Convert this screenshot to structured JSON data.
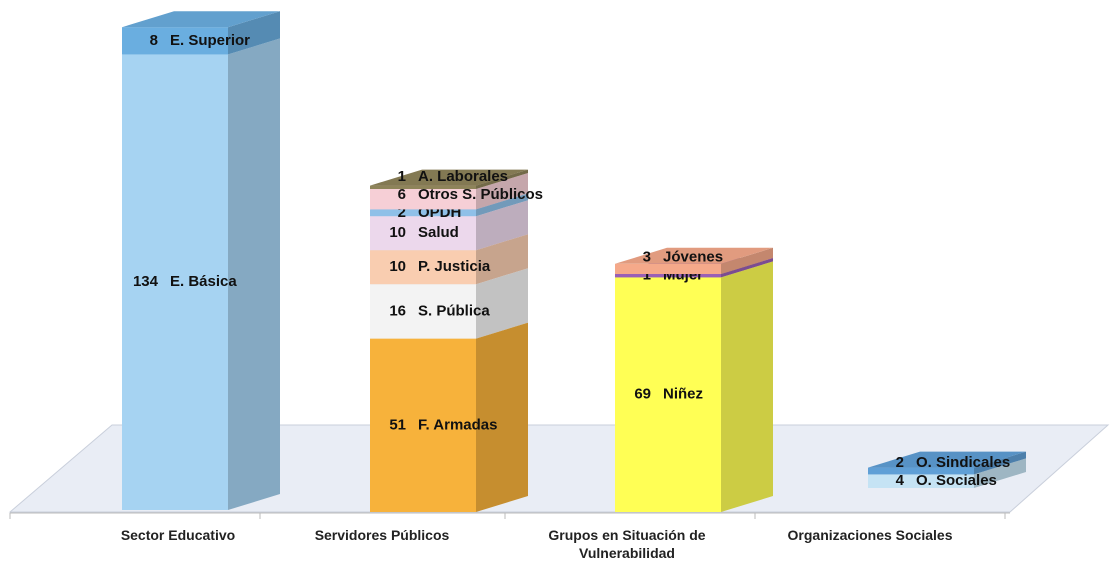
{
  "chart_data": {
    "type": "bar3d-stacked",
    "categories": [
      "Sector Educativo",
      "Servidores Públicos",
      "Grupos en Situación de Vulnerabilidad",
      "Organizaciones Sociales"
    ],
    "stacks": [
      [
        {
          "name": "E. Básica",
          "value": 134,
          "color": "#a6d3f2"
        },
        {
          "name": "E. Superior",
          "value": 8,
          "color": "#6aaee0"
        }
      ],
      [
        {
          "name": "F. Armadas",
          "value": 51,
          "color": "#f7b23b"
        },
        {
          "name": "S. Pública",
          "value": 16,
          "color": "#f3f3f3"
        },
        {
          "name": "P. Justicia",
          "value": 10,
          "color": "#f9cdb0"
        },
        {
          "name": "Salud",
          "value": 10,
          "color": "#ecd8ec"
        },
        {
          "name": "OPDH",
          "value": 2,
          "color": "#8fc0e8"
        },
        {
          "name": "Otros S. Públicos",
          "value": 6,
          "color": "#f6cfd6"
        },
        {
          "name": "A. Laborales",
          "value": 1,
          "color": "#8e845a"
        }
      ],
      [
        {
          "name": "Niñez",
          "value": 69,
          "color": "#ffff55"
        },
        {
          "name": "Mujer",
          "value": 1,
          "color": "#9a5fb5"
        },
        {
          "name": "Jóvenes",
          "value": 3,
          "color": "#f5a98a"
        }
      ],
      [
        {
          "name": "O. Sociales",
          "value": 4,
          "color": "#c5e3f4"
        },
        {
          "name": "O. Sindicales",
          "value": 2,
          "color": "#5f9fd6"
        }
      ]
    ]
  }
}
